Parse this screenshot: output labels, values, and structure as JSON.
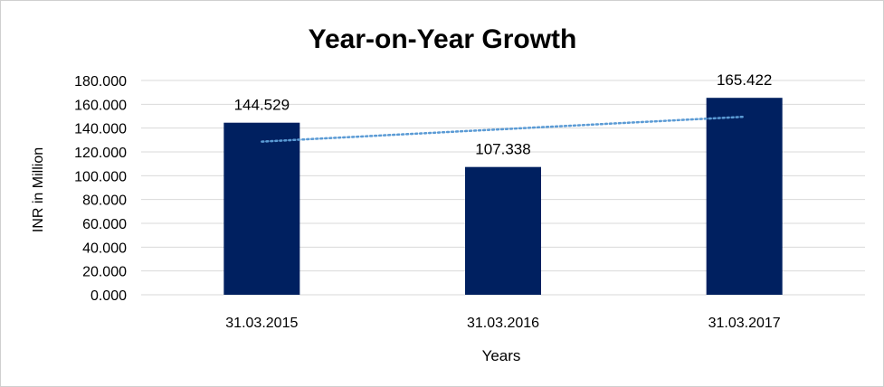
{
  "chart_data": {
    "type": "bar",
    "title": "Year-on-Year Growth",
    "xlabel": "Years",
    "ylabel": "INR in Million",
    "categories": [
      "31.03.2015",
      "31.03.2016",
      "31.03.2017"
    ],
    "values": [
      144.529,
      107.338,
      165.422
    ],
    "value_labels": [
      "144.529",
      "107.338",
      "165.422"
    ],
    "ylim": [
      0,
      180
    ],
    "yticks": [
      0,
      20,
      40,
      60,
      80,
      100,
      120,
      140,
      160,
      180
    ],
    "ytick_labels": [
      "0.000",
      "20.000",
      "40.000",
      "60.000",
      "80.000",
      "100.000",
      "120.000",
      "140.000",
      "160.000",
      "180.000"
    ],
    "grid": true,
    "legend": "none",
    "trendline": {
      "type": "linear",
      "style": "dotted",
      "color": "#5b9bd5"
    },
    "colors": {
      "bar": "#002060",
      "grid": "#d9d9d9"
    }
  }
}
